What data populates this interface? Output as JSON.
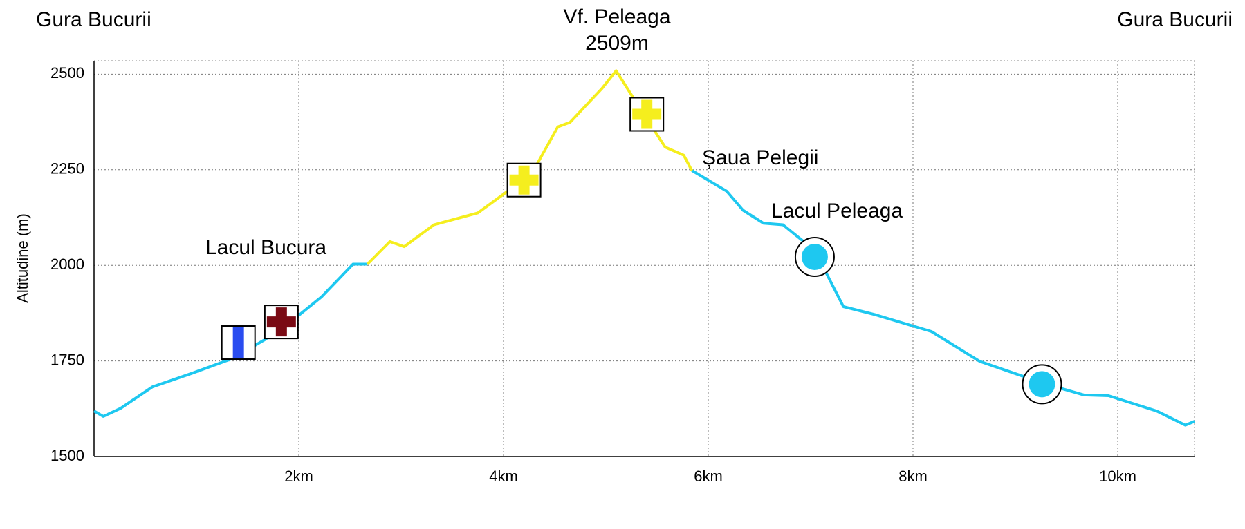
{
  "chart_data": {
    "type": "line",
    "y_label": "Altitudine (m)",
    "annotations": [
      "Gura Bucurii",
      "Vf. Peleaga",
      "2509m",
      "Gura Bucurii",
      "Șaua Pelegii",
      "Lacul Peleaga",
      "Lacul Bucura"
    ],
    "x": [
      0,
      0.09,
      0.26,
      0.57,
      0.96,
      1.35,
      1.67,
      1.98,
      2.22,
      2.53,
      2.67,
      2.89,
      3.03,
      3.32,
      3.75,
      4.02,
      4.26,
      4.53,
      4.65,
      4.85,
      4.96,
      5.1,
      5.36,
      5.58,
      5.76,
      5.84,
      6.18,
      6.34,
      6.54,
      6.73,
      7.04,
      7.32,
      7.63,
      8.18,
      8.65,
      9.28,
      9.67,
      9.91,
      10.38,
      10.66,
      10.75
    ],
    "series": [
      {
        "color": "#1ec8f0",
        "values": [
          1619,
          1605,
          1626,
          1682,
          1718,
          1756,
          1806,
          1865,
          1917,
          2003,
          2003,
          null,
          null,
          null,
          null,
          null,
          null,
          null,
          null,
          null,
          null,
          null,
          null,
          null,
          null,
          2248,
          2194,
          2144,
          2110,
          2106,
          2039,
          1892,
          1871,
          1827,
          1749,
          1691,
          1661,
          1659,
          1619,
          1582,
          1592
        ]
      },
      {
        "color": "#f5ee1e",
        "values": [
          null,
          null,
          null,
          null,
          null,
          null,
          null,
          null,
          null,
          null,
          2003,
          2062,
          2049,
          2106,
          2137,
          2190,
          2232,
          2362,
          2374,
          2431,
          2462,
          2509,
          2399,
          2309,
          2288,
          2248,
          null,
          null,
          null,
          null,
          null,
          null,
          null,
          null,
          null,
          null,
          null,
          null,
          null,
          null,
          null
        ]
      }
    ],
    "markers": [
      {
        "shape": "stripe",
        "color": "#2a4cf0",
        "x": 1.41,
        "y": 1798
      },
      {
        "shape": "cross",
        "color": "#7a0a14",
        "x": 1.83,
        "y": 1852
      },
      {
        "shape": "cross",
        "color": "#f5ee1e",
        "x": 4.2,
        "y": 2223
      },
      {
        "shape": "cross",
        "color": "#f5ee1e",
        "x": 5.4,
        "y": 2395
      },
      {
        "shape": "dot",
        "color": "#1ec8f0",
        "x": 7.04,
        "y": 2022
      },
      {
        "shape": "dot",
        "color": "#1ec8f0",
        "x": 9.26,
        "y": 1689
      }
    ],
    "xlim": [
      0,
      10.75
    ],
    "ylim": [
      1500,
      2535
    ],
    "xticks": [
      {
        "value": 2,
        "label": "2km"
      },
      {
        "value": 4,
        "label": "4km"
      },
      {
        "value": 6,
        "label": "6km"
      },
      {
        "value": 8,
        "label": "8km"
      },
      {
        "value": 10,
        "label": "10km"
      }
    ],
    "yticks": [
      1500,
      1750,
      2000,
      2250,
      2500
    ],
    "grid": true
  }
}
